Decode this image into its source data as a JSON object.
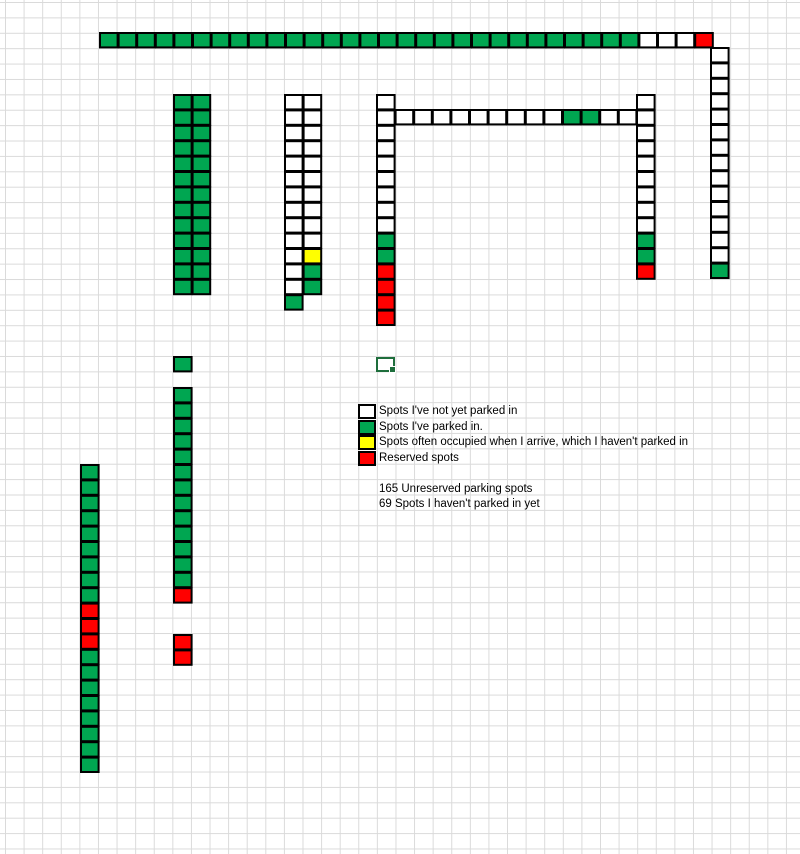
{
  "colors": {
    "not_parked": "#ffffff",
    "parked": "#00a651",
    "often_occupied": "#ffff00",
    "reserved": "#ff0000",
    "border": "#000000",
    "selection": "#1e6e3c"
  },
  "legend": [
    {
      "status": "not_parked",
      "label": "Spots I've not yet parked in"
    },
    {
      "status": "parked",
      "label": "Spots I've parked in."
    },
    {
      "status": "often_occupied",
      "label": "Spots often occupied when I arrive, which I haven't parked in"
    },
    {
      "status": "reserved",
      "label": "Reserved spots"
    }
  ],
  "summary": [
    "165 Unreserved parking spots",
    "69 Spots I haven't parked in yet"
  ]
}
